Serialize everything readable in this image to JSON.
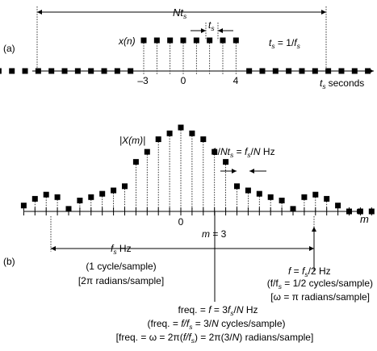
{
  "part_a": {
    "panel_label": "(a)",
    "span_base": "Nt",
    "span_sub": "s",
    "sample_period_base": "t",
    "sample_period_sub": "s",
    "signal_label": "x(n)",
    "relation_t": "t",
    "relation_s1": "s",
    "relation_mid": " = 1/",
    "relation_f": "f",
    "relation_s2": "s",
    "tick_m3": "–3",
    "tick_0": "0",
    "tick_4": "4",
    "axis_base": "t",
    "axis_sub": "s",
    "axis_word": "seconds"
  },
  "part_b": {
    "panel_label": "(b)",
    "mag_label": "|X(m)|",
    "res_a": "1/",
    "res_b": "Nt",
    "res_b_sub": "s",
    "res_c": " = ",
    "res_d": "f",
    "res_d_sub": "s",
    "res_e": "/",
    "res_f": "N",
    "res_g": " Hz",
    "tick_0": "0",
    "axis_label": "m",
    "m3_label": "m = 3",
    "fs_base": "f",
    "fs_sub": "s",
    "fs_unit": " Hz",
    "fs_cycles": "(1  cycle/sample)",
    "fs_radians": "[2π  radians/sample]",
    "half_a": "f",
    "half_b": " = ",
    "half_c": "f",
    "half_c_sub": "s",
    "half_d": "/2  Hz",
    "half_cycles": "(f/f",
    "half_cycles_sub": "s",
    "half_cycles_end": " = 1/2  cycles/sample)",
    "half_radians": "[ω = π  radians/sample]",
    "freq_line1_a": "freq. = ",
    "freq_line1_b": "f",
    "freq_line1_c": " = 3",
    "freq_line1_d": "f",
    "freq_line1_d_sub": "s",
    "freq_line1_e": "/",
    "freq_line1_f": "N",
    "freq_line1_g": "  Hz",
    "freq_line2_a": "(freq. = ",
    "freq_line2_b": "f/f",
    "freq_line2_b_sub": "s",
    "freq_line2_c": " = 3/",
    "freq_line2_d": "N",
    "freq_line2_e": "  cycles/sample)",
    "freq_line3_a": "[freq. = ω = 2π(",
    "freq_line3_b": "f/f",
    "freq_line3_b_sub": "s",
    "freq_line3_c": ") = 2π(3/",
    "freq_line3_d": "N",
    "freq_line3_e": ")  radians/sample]"
  },
  "chart_data": {
    "type": "scatter",
    "panels": [
      {
        "panel": "(a)",
        "signal": "x(n)",
        "x_tick_labels": [
          "–3",
          "0",
          "4"
        ],
        "nonzero_sample_indices": [
          -3,
          -2,
          -1,
          0,
          1,
          2,
          3,
          4
        ],
        "nonzero_sample_value": 1,
        "zero_sample_indices": [
          -14,
          -13,
          -12,
          -11,
          -10,
          -9,
          -8,
          -7,
          -6,
          -5,
          -4,
          5,
          6,
          7,
          8,
          9,
          10,
          11,
          12,
          13,
          14,
          15,
          16
        ]
      },
      {
        "panel": "(b)",
        "signal": "|X(m)|",
        "x_tick_labels": [
          "0"
        ],
        "m": [
          -14,
          -13,
          -12,
          -11,
          -10,
          -9,
          -8,
          -7,
          -6,
          -5,
          -4,
          -3,
          -2,
          -1,
          0,
          1,
          2,
          3,
          4,
          5,
          6,
          7,
          8,
          9,
          10,
          11,
          12,
          13,
          14,
          15,
          16,
          17
        ],
        "magnitude": [
          0.07,
          0.15,
          0.2,
          0.17,
          0.03,
          0.13,
          0.17,
          0.21,
          0.25,
          0.3,
          0.59,
          0.71,
          0.86,
          0.93,
          1.0,
          0.93,
          0.86,
          0.71,
          0.59,
          0.3,
          0.25,
          0.21,
          0.17,
          0.13,
          0.03,
          0.17,
          0.2,
          0.15,
          0.07,
          0.0,
          0.0,
          0.0
        ]
      }
    ]
  }
}
